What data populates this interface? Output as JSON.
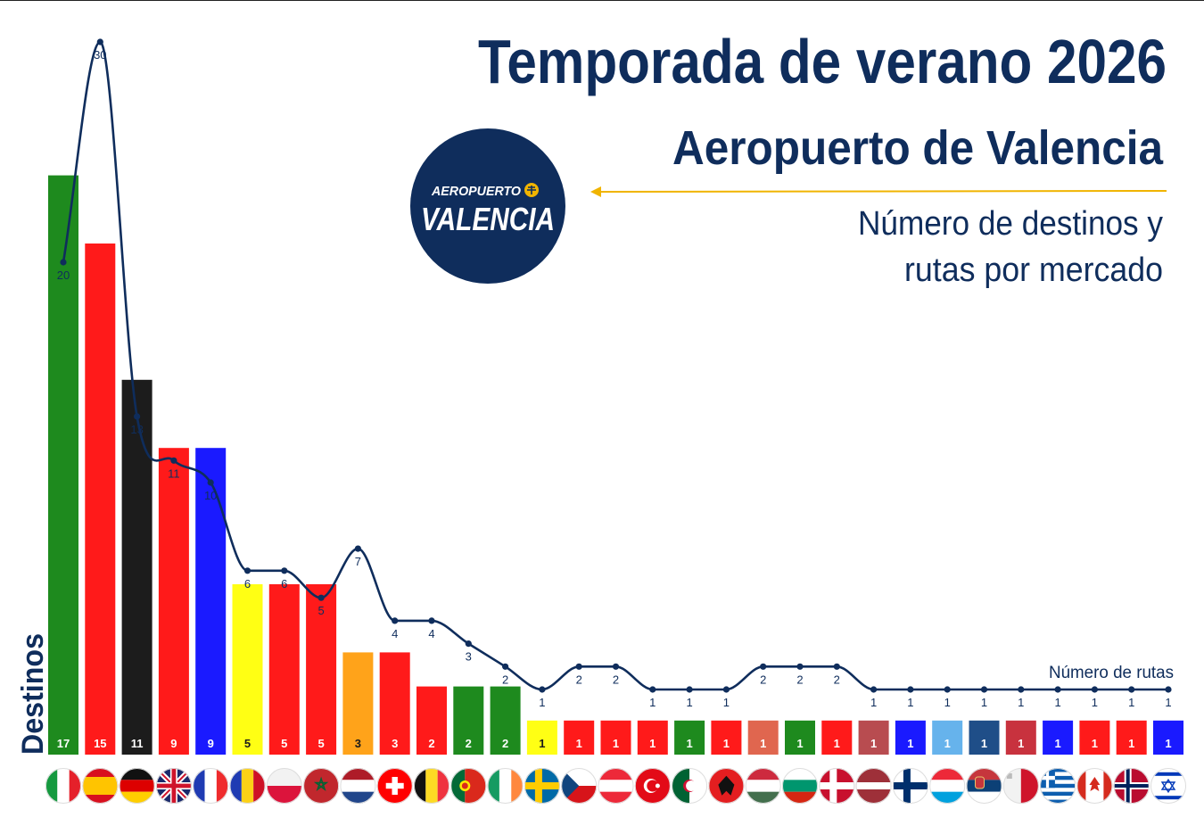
{
  "header": {
    "title": "Temporada de verano 2026",
    "subtitle": "Aeropuerto de Valencia",
    "description_line1": "Número de destinos y",
    "description_line2": "rutas por mercado"
  },
  "logo": {
    "top_text": "AEROPUERTO",
    "main_text": "VALENCIA",
    "icon": "plane-icon",
    "color": "#0f2d5c"
  },
  "chart_data": {
    "type": "bar",
    "ylabel": "Destinos",
    "line_label": "Número de rutas",
    "line_color": "#0f2d5c",
    "categories": [
      "Italy",
      "Spain",
      "Germany",
      "United Kingdom",
      "France",
      "Romania",
      "Poland",
      "Morocco",
      "Netherlands",
      "Switzerland",
      "Belgium",
      "Portugal",
      "Ireland",
      "Sweden",
      "Czech Republic",
      "Austria",
      "Turkey",
      "Algeria",
      "Albania",
      "Hungary",
      "Bulgaria",
      "Denmark",
      "Latvia",
      "Finland",
      "Luxembourg",
      "Serbia",
      "Malta",
      "Greece",
      "Canada",
      "Norway",
      "Israel"
    ],
    "series": [
      {
        "values": [
          17,
          15,
          11,
          9,
          9,
          5,
          5,
          5,
          3,
          3,
          2,
          2,
          2,
          1,
          1,
          1,
          1,
          1,
          1,
          1,
          1,
          1,
          1,
          1,
          1,
          1,
          1,
          1,
          1,
          1,
          1
        ]
      },
      {
        "values": [
          20,
          30,
          13,
          11,
          10,
          6,
          6,
          5,
          7,
          4,
          4,
          3,
          2,
          1,
          2,
          2,
          1,
          1,
          1,
          2,
          2,
          2,
          1,
          1,
          1,
          1,
          1,
          1,
          1,
          1,
          1
        ]
      }
    ],
    "bar_colors": [
      "#1e8a1e",
      "#ff1a1a",
      "#1c1c1c",
      "#ff1a1a",
      "#1a1aff",
      "#ffff14",
      "#ff1a1a",
      "#ff1a1a",
      "#ffa31a",
      "#ff1a1a",
      "#ff1a1a",
      "#1e8a1e",
      "#1e8a1e",
      "#ffff14",
      "#ff1a1a",
      "#ff1a1a",
      "#ff1a1a",
      "#1e8a1e",
      "#ff1a1a",
      "#e0664f",
      "#1e8a1e",
      "#ff1a1a",
      "#b84c50",
      "#1a1aff",
      "#66b3ec",
      "#1f4e88",
      "#c8323e",
      "#1a1aff",
      "#ff1a1a",
      "#ff1a1a",
      "#1a1aff"
    ],
    "flags": [
      "italy-flag-icon",
      "spain-flag-icon",
      "germany-flag-icon",
      "united-kingdom-flag-icon",
      "france-flag-icon",
      "romania-flag-icon",
      "poland-flag-icon",
      "morocco-flag-icon",
      "netherlands-flag-icon",
      "switzerland-flag-icon",
      "belgium-flag-icon",
      "portugal-flag-icon",
      "ireland-flag-icon",
      "sweden-flag-icon",
      "czech-republic-flag-icon",
      "austria-flag-icon",
      "turkey-flag-icon",
      "algeria-flag-icon",
      "albania-flag-icon",
      "hungary-flag-icon",
      "bulgaria-flag-icon",
      "denmark-flag-icon",
      "latvia-flag-icon",
      "finland-flag-icon",
      "luxembourg-flag-icon",
      "serbia-flag-icon",
      "malta-flag-icon",
      "greece-flag-icon",
      "canada-flag-icon",
      "norway-flag-icon",
      "israel-flag-icon"
    ],
    "grid": false,
    "legend": "none"
  },
  "colors": {
    "accent_arrow": "#f0b400",
    "title": "#0f2d5c"
  }
}
